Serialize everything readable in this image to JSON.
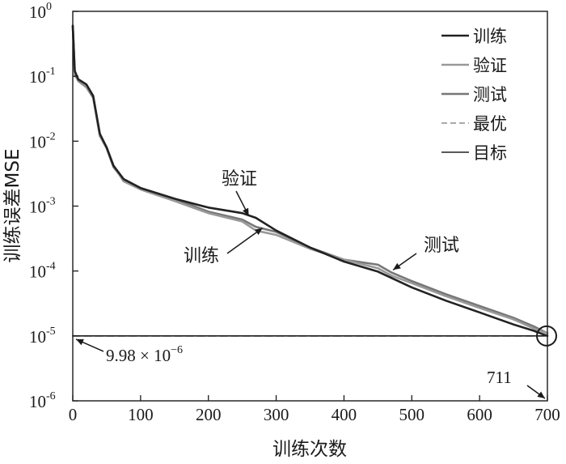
{
  "chart_data": {
    "type": "line",
    "title": "",
    "xlabel": "训练次数",
    "ylabel": "训练误差MSE",
    "xlim": [
      0,
      700
    ],
    "ylim": [
      1e-06,
      1
    ],
    "yscale": "log",
    "grid": false,
    "legend_position": "top-right",
    "x_ticks": [
      0,
      100,
      200,
      300,
      400,
      500,
      600,
      700
    ],
    "y_ticks": [
      {
        "value": 1e-06,
        "base": "10",
        "exp": "-6"
      },
      {
        "value": 1e-05,
        "base": "10",
        "exp": "-5"
      },
      {
        "value": 0.0001,
        "base": "10",
        "exp": "-4"
      },
      {
        "value": 0.001,
        "base": "10",
        "exp": "-3"
      },
      {
        "value": 0.01,
        "base": "10",
        "exp": "-2"
      },
      {
        "value": 0.1,
        "base": "10",
        "exp": "-1"
      },
      {
        "value": 1,
        "base": "10",
        "exp": "0"
      }
    ],
    "series": [
      {
        "name": "训练",
        "color": "#222222",
        "style": "solid",
        "x": [
          0,
          3,
          8,
          20,
          30,
          40,
          50,
          60,
          75,
          100,
          150,
          200,
          250,
          270,
          300,
          350,
          400,
          450,
          500,
          550,
          600,
          650,
          680,
          700
        ],
        "y": [
          0.6,
          0.12,
          0.09,
          0.075,
          0.05,
          0.013,
          0.008,
          0.0042,
          0.0026,
          0.0019,
          0.0013,
          0.00095,
          0.00078,
          0.00066,
          0.00042,
          0.00023,
          0.00014,
          9.8e-05,
          5.6e-05,
          3.5e-05,
          2.3e-05,
          1.5e-05,
          1.2e-05,
          1e-05
        ]
      },
      {
        "name": "验证",
        "color": "#999999",
        "style": "solid",
        "x": [
          0,
          3,
          8,
          20,
          30,
          40,
          50,
          60,
          75,
          100,
          150,
          200,
          250,
          270,
          300,
          350,
          400,
          450,
          470,
          500,
          550,
          600,
          650,
          680,
          700
        ],
        "y": [
          0.6,
          0.1,
          0.09,
          0.07,
          0.05,
          0.012,
          0.008,
          0.0042,
          0.0024,
          0.0018,
          0.0012,
          0.00078,
          0.00058,
          0.00042,
          0.00036,
          0.00022,
          0.00015,
          0.00011,
          8.5e-05,
          6.5e-05,
          4.1e-05,
          2.7e-05,
          1.8e-05,
          1.3e-05,
          1.1e-05
        ]
      },
      {
        "name": "测试",
        "color": "#777777",
        "style": "solid",
        "x": [
          0,
          3,
          8,
          20,
          30,
          40,
          50,
          60,
          75,
          100,
          150,
          200,
          250,
          270,
          300,
          350,
          400,
          450,
          470,
          500,
          550,
          600,
          650,
          680,
          700
        ],
        "y": [
          0.6,
          0.11,
          0.085,
          0.068,
          0.047,
          0.012,
          0.0078,
          0.004,
          0.0025,
          0.0019,
          0.0013,
          0.00082,
          0.00062,
          0.00048,
          0.0004,
          0.00023,
          0.00015,
          0.000125,
          9.5e-05,
          7e-05,
          4.4e-05,
          2.9e-05,
          1.9e-05,
          1.4e-05,
          1.1e-05
        ]
      },
      {
        "name": "最优",
        "color": "#aaaaaa",
        "style": "dashed",
        "x": [
          0,
          700
        ],
        "y": [
          9.98e-06,
          9.98e-06
        ]
      },
      {
        "name": "目标",
        "color": "#222222",
        "style": "solid-thin",
        "x": [
          0,
          700
        ],
        "y": [
          1e-05,
          1e-05
        ]
      }
    ],
    "legend": [
      {
        "label": "训练",
        "color": "#222222",
        "style": "solid"
      },
      {
        "label": "验证",
        "color": "#999999",
        "style": "solid"
      },
      {
        "label": "测试",
        "color": "#777777",
        "style": "solid"
      },
      {
        "label": "最优",
        "color": "#aaaaaa",
        "style": "dashed"
      },
      {
        "label": "目标",
        "color": "#222222",
        "style": "solid-thin"
      }
    ],
    "annotations": [
      {
        "id": "ann-validation",
        "text": "验证",
        "x": 250,
        "y": 0.00075
      },
      {
        "id": "ann-training",
        "text": "训练",
        "x": 275,
        "y": 0.0005
      },
      {
        "id": "ann-test",
        "text": "测试",
        "x": 470,
        "y": 0.00011
      },
      {
        "id": "ann-best",
        "base": "9.98 × 10",
        "exp": "−6",
        "x": 0,
        "y": 9.98e-06
      },
      {
        "id": "ann-epoch",
        "text": "711",
        "x": 700,
        "y": 1e-06
      }
    ]
  }
}
